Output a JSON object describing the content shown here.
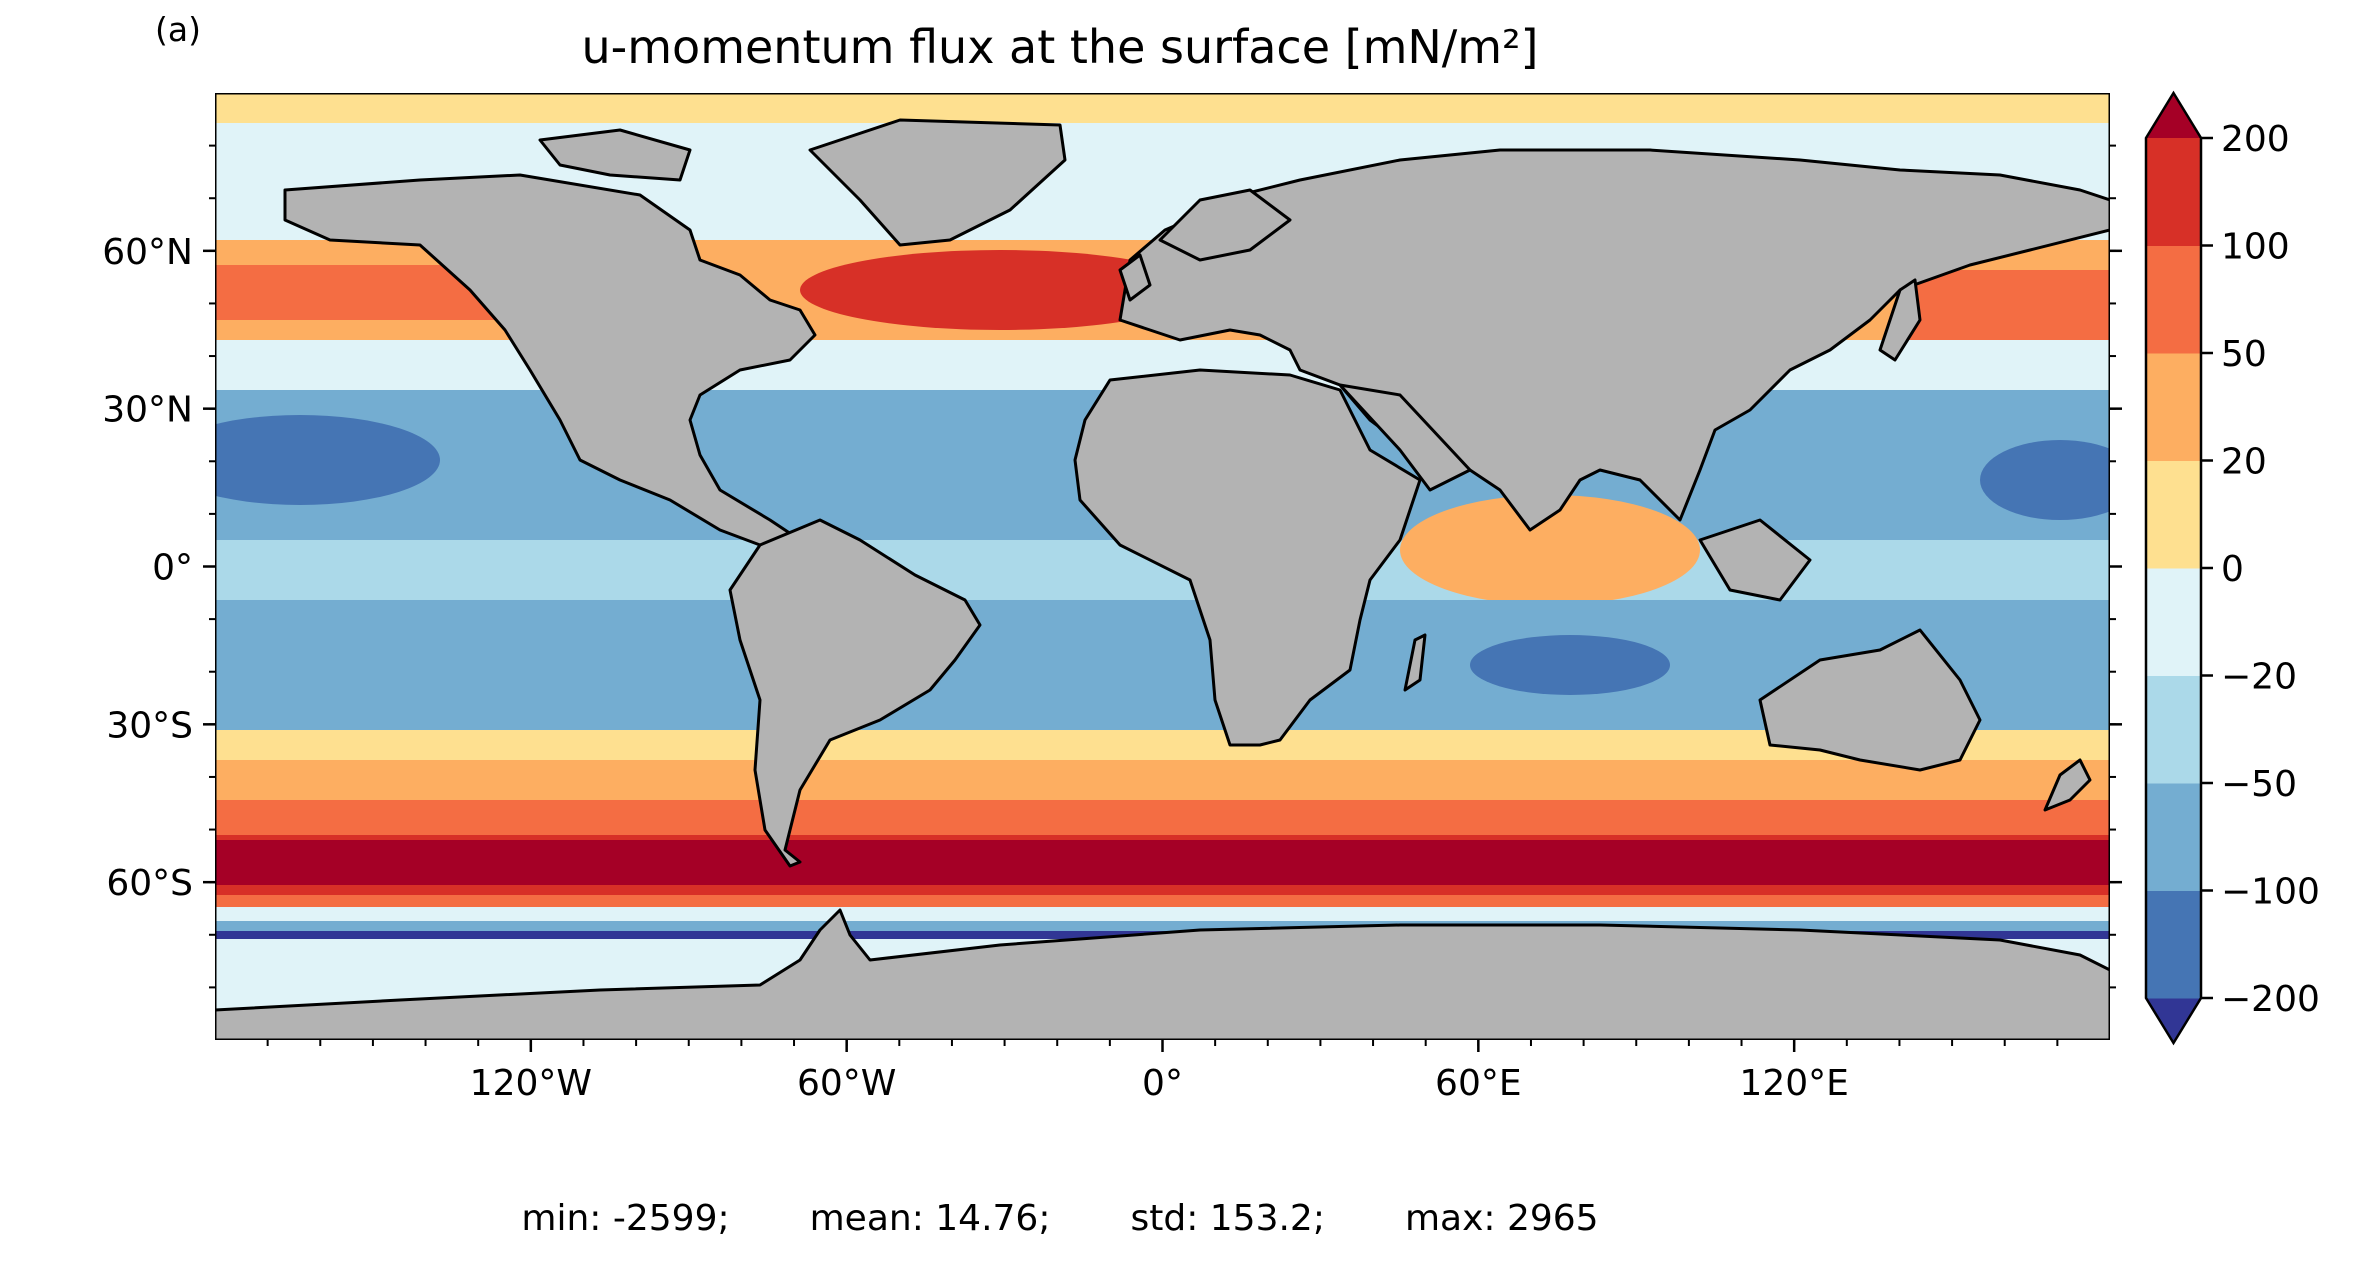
{
  "panel_label": "(a)",
  "title": "u-momentum flux at the surface [mN/m²]",
  "map": {
    "projection": "equirectangular",
    "lon_range": [
      -180,
      180
    ],
    "lat_range": [
      -90,
      90
    ],
    "land_color": "#b3b3b3",
    "coastline_color": "#000000",
    "y_ticks": [
      {
        "lat": 60,
        "label": "60°N"
      },
      {
        "lat": 30,
        "label": "30°N"
      },
      {
        "lat": 0,
        "label": "0°"
      },
      {
        "lat": -30,
        "label": "30°S"
      },
      {
        "lat": -60,
        "label": "60°S"
      }
    ],
    "x_ticks": [
      {
        "lon": -120,
        "label": "120°W"
      },
      {
        "lon": -60,
        "label": "60°W"
      },
      {
        "lon": 0,
        "label": "0°"
      },
      {
        "lon": 60,
        "label": "60°E"
      },
      {
        "lon": 120,
        "label": "120°E"
      }
    ]
  },
  "colorbar": {
    "extend": "both",
    "boundaries": [
      -200,
      -100,
      -50,
      -20,
      0,
      20,
      50,
      100,
      200
    ],
    "tick_labels": [
      "−200",
      "−100",
      "−50",
      "−20",
      "0",
      "20",
      "50",
      "100",
      "200"
    ],
    "under_color": "#313695",
    "over_color": "#a50026",
    "colors": [
      "#4575b4",
      "#74add1",
      "#abd9e9",
      "#e0f3f8",
      "#fee090",
      "#fdae61",
      "#f46d43",
      "#d73027"
    ]
  },
  "stats": {
    "min": "min: -2599;",
    "mean": "mean: 14.76;",
    "std": "std: 153.2;",
    "max": "max: 2965"
  }
}
